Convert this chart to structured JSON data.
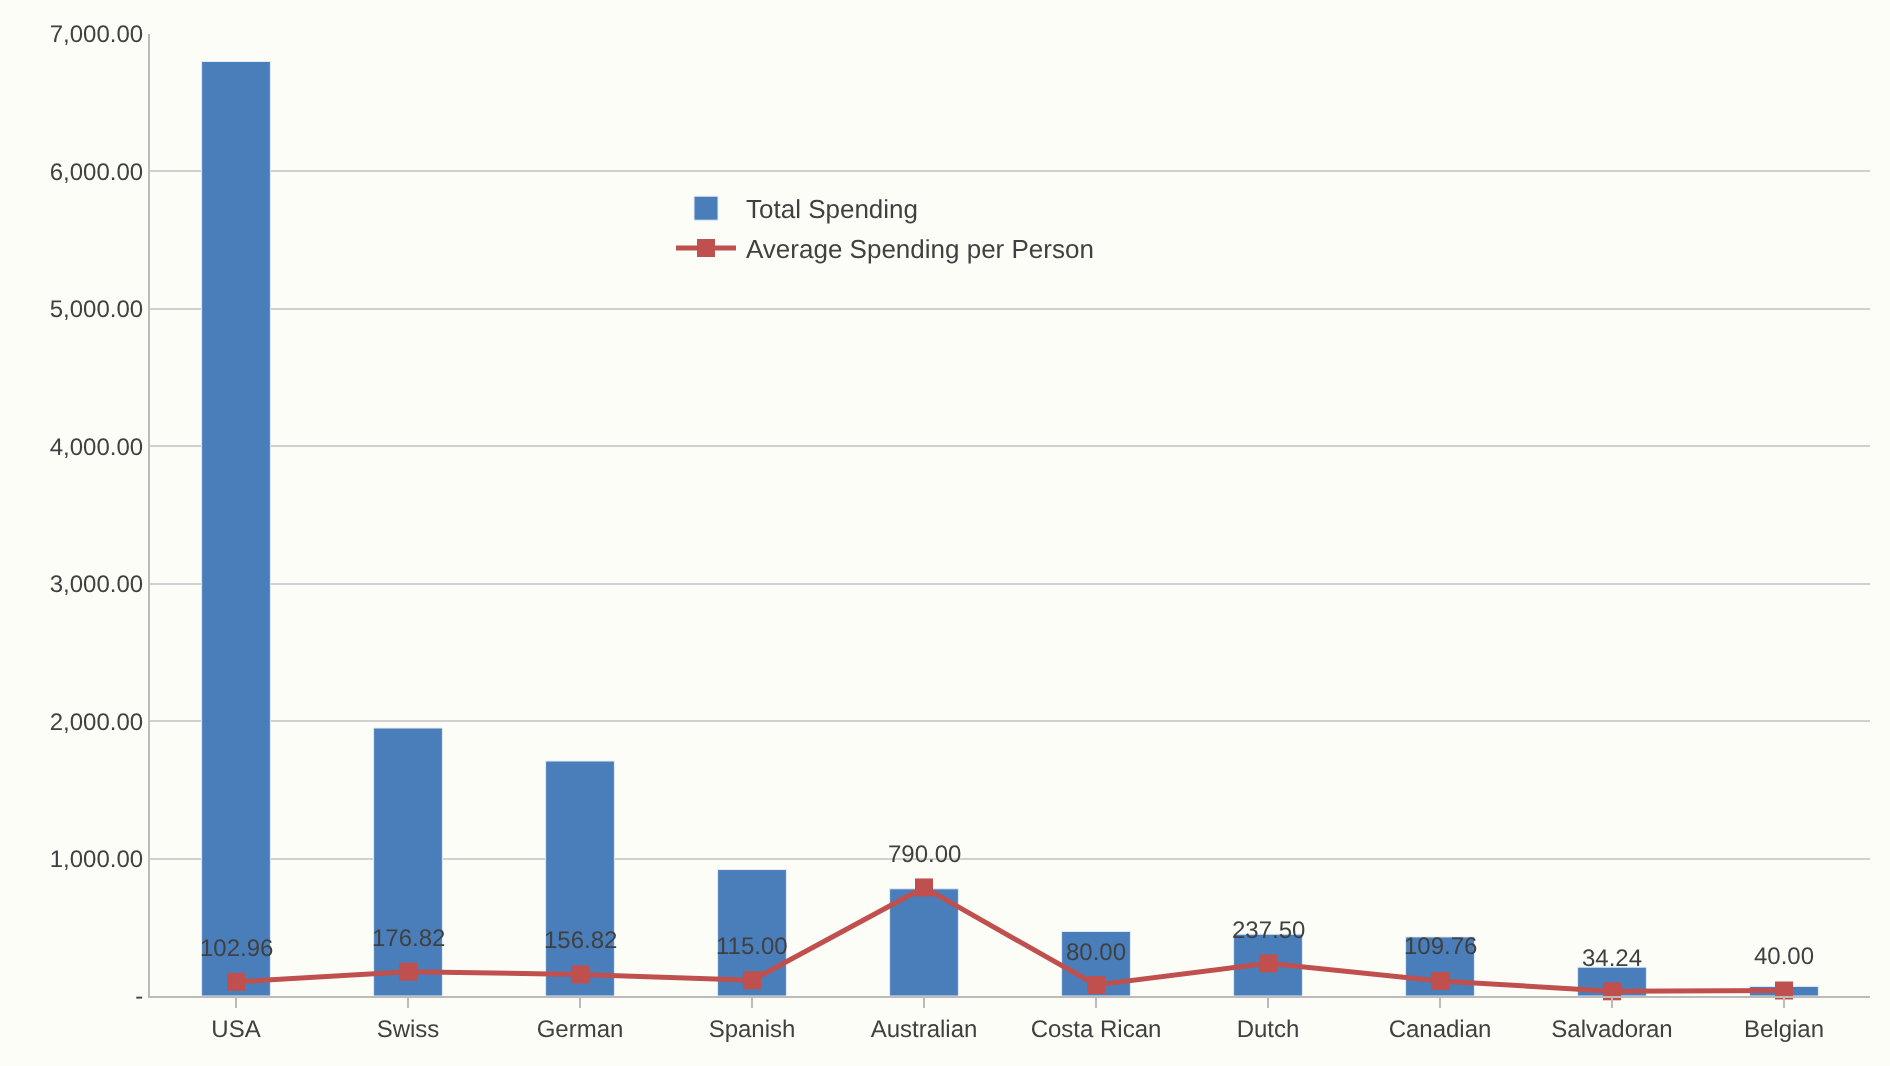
{
  "chart_data": {
    "type": "bar",
    "categories": [
      "USA",
      "Swiss",
      "German",
      "Spanish",
      "Australian",
      "Costa Rican",
      "Dutch",
      "Canadian",
      "Salvadoran",
      "Belgian"
    ],
    "series": [
      {
        "name": "Total Spending",
        "color": "#4a7ebb",
        "values": [
          6800,
          1950,
          1710,
          920,
          780,
          470,
          450,
          430,
          210,
          70
        ]
      },
      {
        "name": "Average Spending per Person",
        "type": "line",
        "color": "#c0504d",
        "marker": "square",
        "line_style": "solid",
        "values": [
          102.96,
          176.82,
          156.82,
          115.0,
          790.0,
          80.0,
          237.5,
          109.76,
          34.24,
          40.0
        ],
        "value_labels": [
          "102.96",
          "176.82",
          "156.82",
          "115.00",
          "790.00",
          "80.00",
          "237.50",
          "109.76",
          "34.24",
          "40.00"
        ]
      }
    ],
    "ylim": [
      0,
      7000
    ],
    "yticks": [
      {
        "value": 0,
        "label": "-"
      },
      {
        "value": 1000,
        "label": "1,000.00"
      },
      {
        "value": 2000,
        "label": "2,000.00"
      },
      {
        "value": 3000,
        "label": "3,000.00"
      },
      {
        "value": 4000,
        "label": "4,000.00"
      },
      {
        "value": 5000,
        "label": "5,000.00"
      },
      {
        "value": 6000,
        "label": "6,000.00"
      },
      {
        "value": 7000,
        "label": "7,000.00"
      }
    ],
    "grid": "y",
    "legend": "top"
  }
}
